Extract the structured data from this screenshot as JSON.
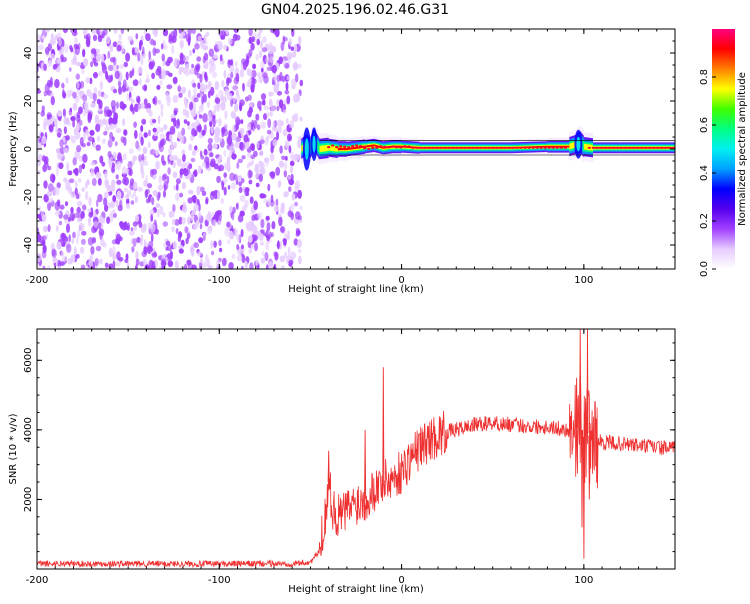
{
  "title": "GN04.2025.196.02.46.G31",
  "chart_data": [
    {
      "type": "heatmap",
      "xlabel": "Height of straight line (km)",
      "ylabel": "Frequency (Hz)",
      "xlim": [
        -200,
        150
      ],
      "ylim": [
        -50,
        50
      ],
      "xticks": [
        -200,
        -100,
        0,
        100
      ],
      "yticks": [
        -40,
        -20,
        0,
        20,
        40
      ],
      "colorbar": {
        "label": "Normalized spectral amplitude",
        "ticks": [
          0.0,
          0.2,
          0.4,
          0.6,
          0.8
        ],
        "range": [
          0,
          1
        ],
        "colormap": [
          "#ffffff",
          "#e6ccff",
          "#a040ff",
          "#5500ee",
          "#0000ff",
          "#00a0ff",
          "#00f0f0",
          "#00ff80",
          "#40ff00",
          "#ffff00",
          "#ff8000",
          "#ff0000",
          "#ff0080"
        ]
      },
      "noise_region": {
        "x": [
          -200,
          -55
        ],
        "y": [
          -50,
          50
        ]
      },
      "ridge": [
        [
          -55,
          0.0,
          0.55
        ],
        [
          -52,
          2.0,
          0.6
        ],
        [
          -50,
          0.5,
          0.6
        ],
        [
          -48,
          4.0,
          0.5
        ],
        [
          -45,
          0.0,
          0.55
        ],
        [
          -40,
          0.5,
          0.65
        ],
        [
          -35,
          0.0,
          0.75
        ],
        [
          -30,
          0.0,
          0.8
        ],
        [
          -25,
          0.5,
          0.8
        ],
        [
          -20,
          1.0,
          0.85
        ],
        [
          -15,
          1.5,
          0.85
        ],
        [
          -10,
          0.5,
          0.85
        ],
        [
          -5,
          1.0,
          0.85
        ],
        [
          0,
          1.0,
          0.9
        ],
        [
          10,
          0.5,
          0.95
        ],
        [
          20,
          0.5,
          0.95
        ],
        [
          40,
          0.5,
          0.95
        ],
        [
          60,
          0.5,
          0.95
        ],
        [
          80,
          1.0,
          0.95
        ],
        [
          92,
          1.0,
          0.9
        ],
        [
          96,
          2.0,
          0.6
        ],
        [
          98,
          3.0,
          0.5
        ],
        [
          100,
          1.0,
          0.6
        ],
        [
          105,
          0.5,
          0.95
        ],
        [
          120,
          0.5,
          0.95
        ],
        [
          150,
          0.5,
          0.95
        ]
      ]
    },
    {
      "type": "line",
      "xlabel": "Height of straight line (km)",
      "ylabel": "SNR (10 * v/v)",
      "xlim": [
        -200,
        150
      ],
      "ylim": [
        0,
        6900
      ],
      "xticks": [
        -200,
        -100,
        0,
        100
      ],
      "yticks": [
        2000,
        4000,
        6000
      ],
      "color": "#ee3030",
      "series": [
        {
          "x": [
            -200,
            -180,
            -160,
            -140,
            -120,
            -100,
            -80,
            -60,
            -50,
            -45,
            -42,
            -40,
            -38,
            -35,
            -30,
            -25,
            -20,
            -15,
            -10,
            -5,
            0,
            5,
            10,
            15,
            20,
            25,
            30,
            40,
            50,
            60,
            70,
            80,
            90,
            95,
            98,
            100,
            102,
            105,
            110,
            120,
            130,
            140,
            150
          ],
          "y": [
            150,
            150,
            150,
            150,
            150,
            150,
            150,
            150,
            200,
            500,
            1500,
            2500,
            1800,
            1500,
            1700,
            1900,
            2000,
            2300,
            2500,
            2600,
            2800,
            3200,
            3500,
            3700,
            3850,
            3950,
            4000,
            4150,
            4200,
            4150,
            4100,
            4100,
            4000,
            4000,
            4200,
            3800,
            3900,
            3700,
            3650,
            3600,
            3550,
            3500,
            3450
          ]
        }
      ],
      "spikes": [
        [
          -10,
          5800
        ],
        [
          -40,
          3400
        ],
        [
          -20,
          4000
        ],
        [
          98,
          6900
        ],
        [
          100,
          300
        ],
        [
          102,
          6900
        ],
        [
          99,
          1200
        ],
        [
          103,
          2000
        ],
        [
          96,
          5500
        ],
        [
          101,
          4800
        ]
      ]
    }
  ]
}
